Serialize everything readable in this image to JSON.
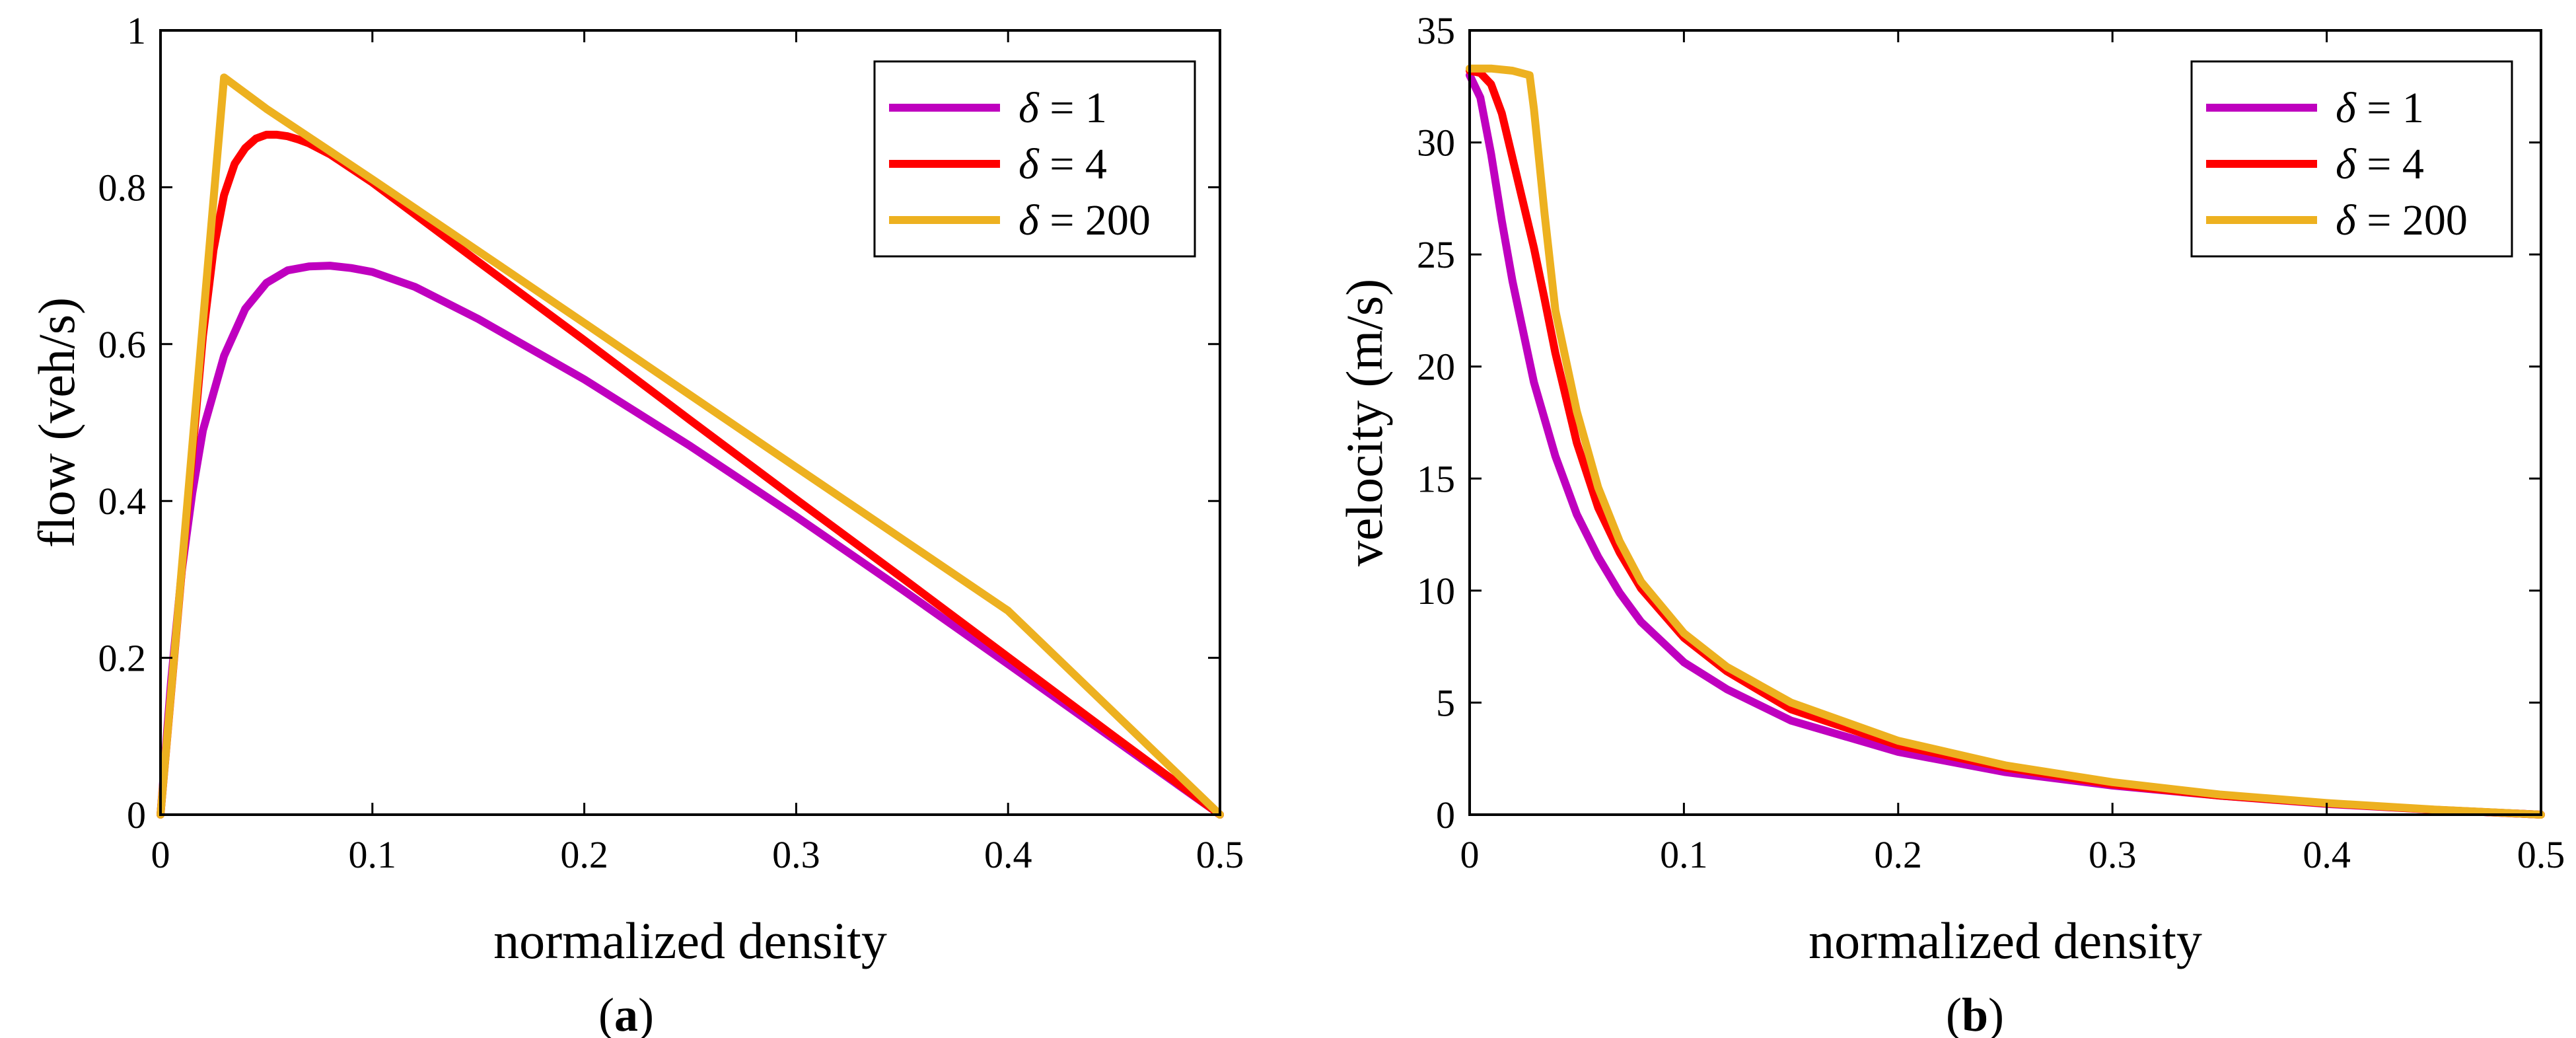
{
  "colors": {
    "delta1": "#BF00BF",
    "delta4": "#FF0000",
    "delta200": "#EDB120",
    "axes": "#000000"
  },
  "chart_data": [
    {
      "id": "a",
      "type": "line",
      "caption_open": "(",
      "caption_letter": "a",
      "caption_close": ")",
      "xlabel": "normalized density",
      "ylabel": "flow (veh/s)",
      "xlim": [
        0,
        0.5
      ],
      "ylim": [
        0,
        1
      ],
      "xticks": [
        0,
        0.1,
        0.2,
        0.3,
        0.4,
        0.5
      ],
      "xtick_labels": [
        "0",
        "0.1",
        "0.2",
        "0.3",
        "0.4",
        "0.5"
      ],
      "yticks": [
        0,
        0.2,
        0.4,
        0.6,
        0.8,
        1
      ],
      "ytick_labels": [
        "0",
        "0.2",
        "0.4",
        "0.6",
        "0.8",
        "1"
      ],
      "legend_position": "top-right",
      "grid": false,
      "series": [
        {
          "name": "δ = 1",
          "symbol": "δ",
          "label_rest": " = 1",
          "color_key": "delta1",
          "x": [
            0,
            0.005,
            0.01,
            0.015,
            0.02,
            0.03,
            0.04,
            0.05,
            0.06,
            0.07,
            0.08,
            0.09,
            0.1,
            0.12,
            0.15,
            0.2,
            0.25,
            0.3,
            0.35,
            0.4,
            0.45,
            0.5
          ],
          "y": [
            0,
            0.17,
            0.31,
            0.41,
            0.49,
            0.585,
            0.645,
            0.678,
            0.694,
            0.699,
            0.7,
            0.697,
            0.692,
            0.673,
            0.632,
            0.555,
            0.47,
            0.38,
            0.287,
            0.192,
            0.096,
            0
          ]
        },
        {
          "name": "δ = 4",
          "symbol": "δ",
          "label_rest": " = 4",
          "color_key": "delta4",
          "x": [
            0,
            0.01,
            0.02,
            0.025,
            0.03,
            0.035,
            0.04,
            0.045,
            0.05,
            0.055,
            0.06,
            0.065,
            0.07,
            0.08,
            0.1,
            0.15,
            0.2,
            0.25,
            0.3,
            0.35,
            0.4,
            0.45,
            0.5
          ],
          "y": [
            0,
            0.31,
            0.61,
            0.72,
            0.79,
            0.83,
            0.85,
            0.862,
            0.867,
            0.867,
            0.865,
            0.861,
            0.856,
            0.842,
            0.806,
            0.705,
            0.605,
            0.503,
            0.402,
            0.302,
            0.201,
            0.1,
            0
          ]
        },
        {
          "name": "δ = 200",
          "symbol": "δ",
          "label_rest": " = 200",
          "color_key": "delta200",
          "x": [
            0,
            0.03,
            0.05,
            0.1,
            0.2,
            0.3,
            0.4,
            0.5
          ],
          "y": [
            0,
            0.94,
            0.9,
            0.81,
            0.627,
            0.443,
            0.26,
            0
          ]
        }
      ]
    },
    {
      "id": "b",
      "type": "line",
      "caption_open": "(",
      "caption_letter": "b",
      "caption_close": ")",
      "xlabel": "normalized density",
      "ylabel": "velocity (m/s)",
      "xlim": [
        0,
        0.5
      ],
      "ylim": [
        0,
        35
      ],
      "xticks": [
        0,
        0.1,
        0.2,
        0.3,
        0.4,
        0.5
      ],
      "xtick_labels": [
        "0",
        "0.1",
        "0.2",
        "0.3",
        "0.4",
        "0.5"
      ],
      "yticks": [
        0,
        5,
        10,
        15,
        20,
        25,
        30,
        35
      ],
      "ytick_labels": [
        "0",
        "5",
        "10",
        "15",
        "20",
        "25",
        "30",
        "35"
      ],
      "legend_position": "top-right",
      "grid": false,
      "series": [
        {
          "name": "δ = 1",
          "symbol": "δ",
          "label_rest": " = 1",
          "color_key": "delta1",
          "x": [
            0,
            0.005,
            0.01,
            0.015,
            0.02,
            0.03,
            0.04,
            0.05,
            0.06,
            0.07,
            0.08,
            0.1,
            0.12,
            0.15,
            0.2,
            0.25,
            0.3,
            0.35,
            0.4,
            0.45,
            0.5
          ],
          "y": [
            33,
            32,
            29.5,
            26.5,
            23.8,
            19.3,
            16,
            13.4,
            11.5,
            9.9,
            8.6,
            6.8,
            5.6,
            4.2,
            2.8,
            1.9,
            1.3,
            0.85,
            0.48,
            0.22,
            0
          ]
        },
        {
          "name": "δ = 4",
          "symbol": "δ",
          "label_rest": " = 4",
          "color_key": "delta4",
          "x": [
            0,
            0.005,
            0.01,
            0.015,
            0.02,
            0.025,
            0.03,
            0.035,
            0.04,
            0.05,
            0.06,
            0.07,
            0.08,
            0.1,
            0.12,
            0.15,
            0.2,
            0.25,
            0.3,
            0.35,
            0.4,
            0.45,
            0.5
          ],
          "y": [
            33.2,
            33.1,
            32.6,
            31.3,
            29.3,
            27.3,
            25.3,
            23,
            20.6,
            16.6,
            13.7,
            11.7,
            10.1,
            7.9,
            6.4,
            4.7,
            3.1,
            2.1,
            1.35,
            0.85,
            0.5,
            0.22,
            0
          ]
        },
        {
          "name": "δ = 200",
          "symbol": "δ",
          "label_rest": " = 200",
          "color_key": "delta200",
          "x": [
            0,
            0.01,
            0.02,
            0.028,
            0.03,
            0.035,
            0.04,
            0.05,
            0.06,
            0.07,
            0.08,
            0.1,
            0.12,
            0.15,
            0.2,
            0.25,
            0.3,
            0.35,
            0.4,
            0.45,
            0.5
          ],
          "y": [
            33.3,
            33.3,
            33.2,
            33,
            31.5,
            26.8,
            22.5,
            18,
            14.6,
            12.2,
            10.4,
            8.1,
            6.6,
            5,
            3.3,
            2.2,
            1.45,
            0.9,
            0.52,
            0.23,
            0
          ]
        }
      ]
    }
  ]
}
